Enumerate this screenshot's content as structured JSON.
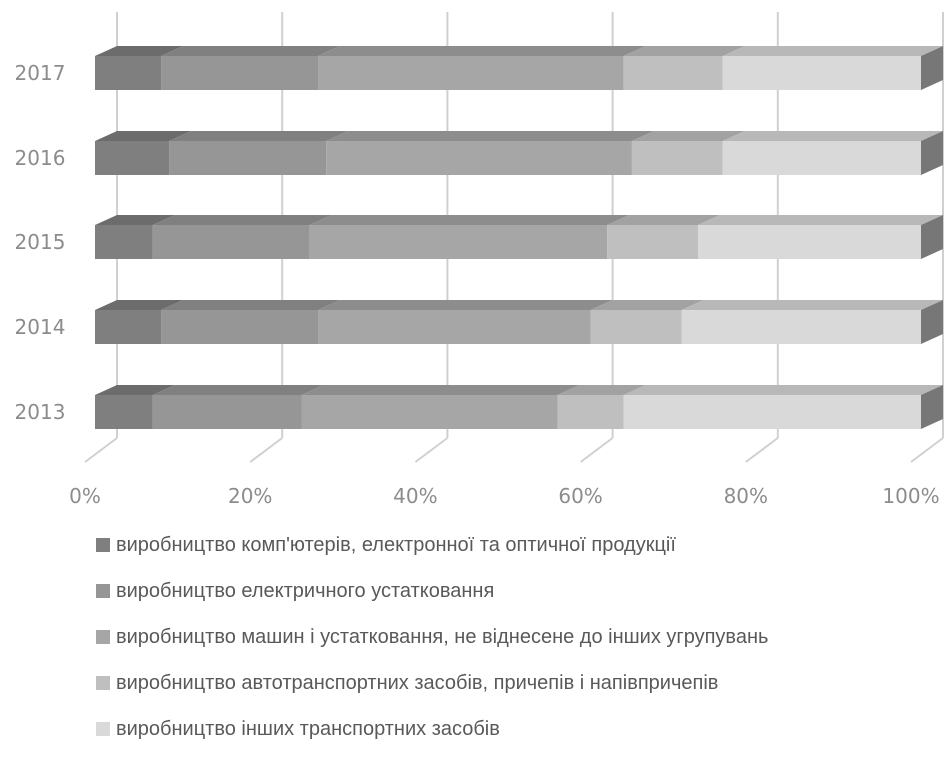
{
  "chart_data": {
    "type": "bar",
    "orientation": "horizontal",
    "stacked": "100%",
    "style": "3d",
    "categories": [
      "2013",
      "2014",
      "2015",
      "2016",
      "2017"
    ],
    "x_ticks": [
      "0%",
      "20%",
      "40%",
      "60%",
      "80%",
      "100%"
    ],
    "xlim": [
      0,
      100
    ],
    "grid": true,
    "legend_position": "bottom",
    "series": [
      {
        "name": "виробництво комп'ютерів, електронної та оптичної продукції",
        "color": "#7f7f7f",
        "values": [
          7,
          8,
          7,
          9,
          8
        ]
      },
      {
        "name": "виробництво електричного устатковання",
        "color": "#969696",
        "values": [
          18,
          19,
          19,
          19,
          19
        ]
      },
      {
        "name": "виробництво машин і устатковання, не віднесене до інших угрупувань",
        "color": "#a6a6a6",
        "values": [
          31,
          33,
          36,
          37,
          37
        ]
      },
      {
        "name": "виробництво автотранспортних засобів, причепів і напівпричепів",
        "color": "#bfbfbf",
        "values": [
          8,
          11,
          11,
          11,
          12
        ]
      },
      {
        "name": "виробництво інших транспортних засобів",
        "color": "#d9d9d9",
        "values": [
          36,
          29,
          27,
          24,
          24
        ]
      }
    ]
  }
}
